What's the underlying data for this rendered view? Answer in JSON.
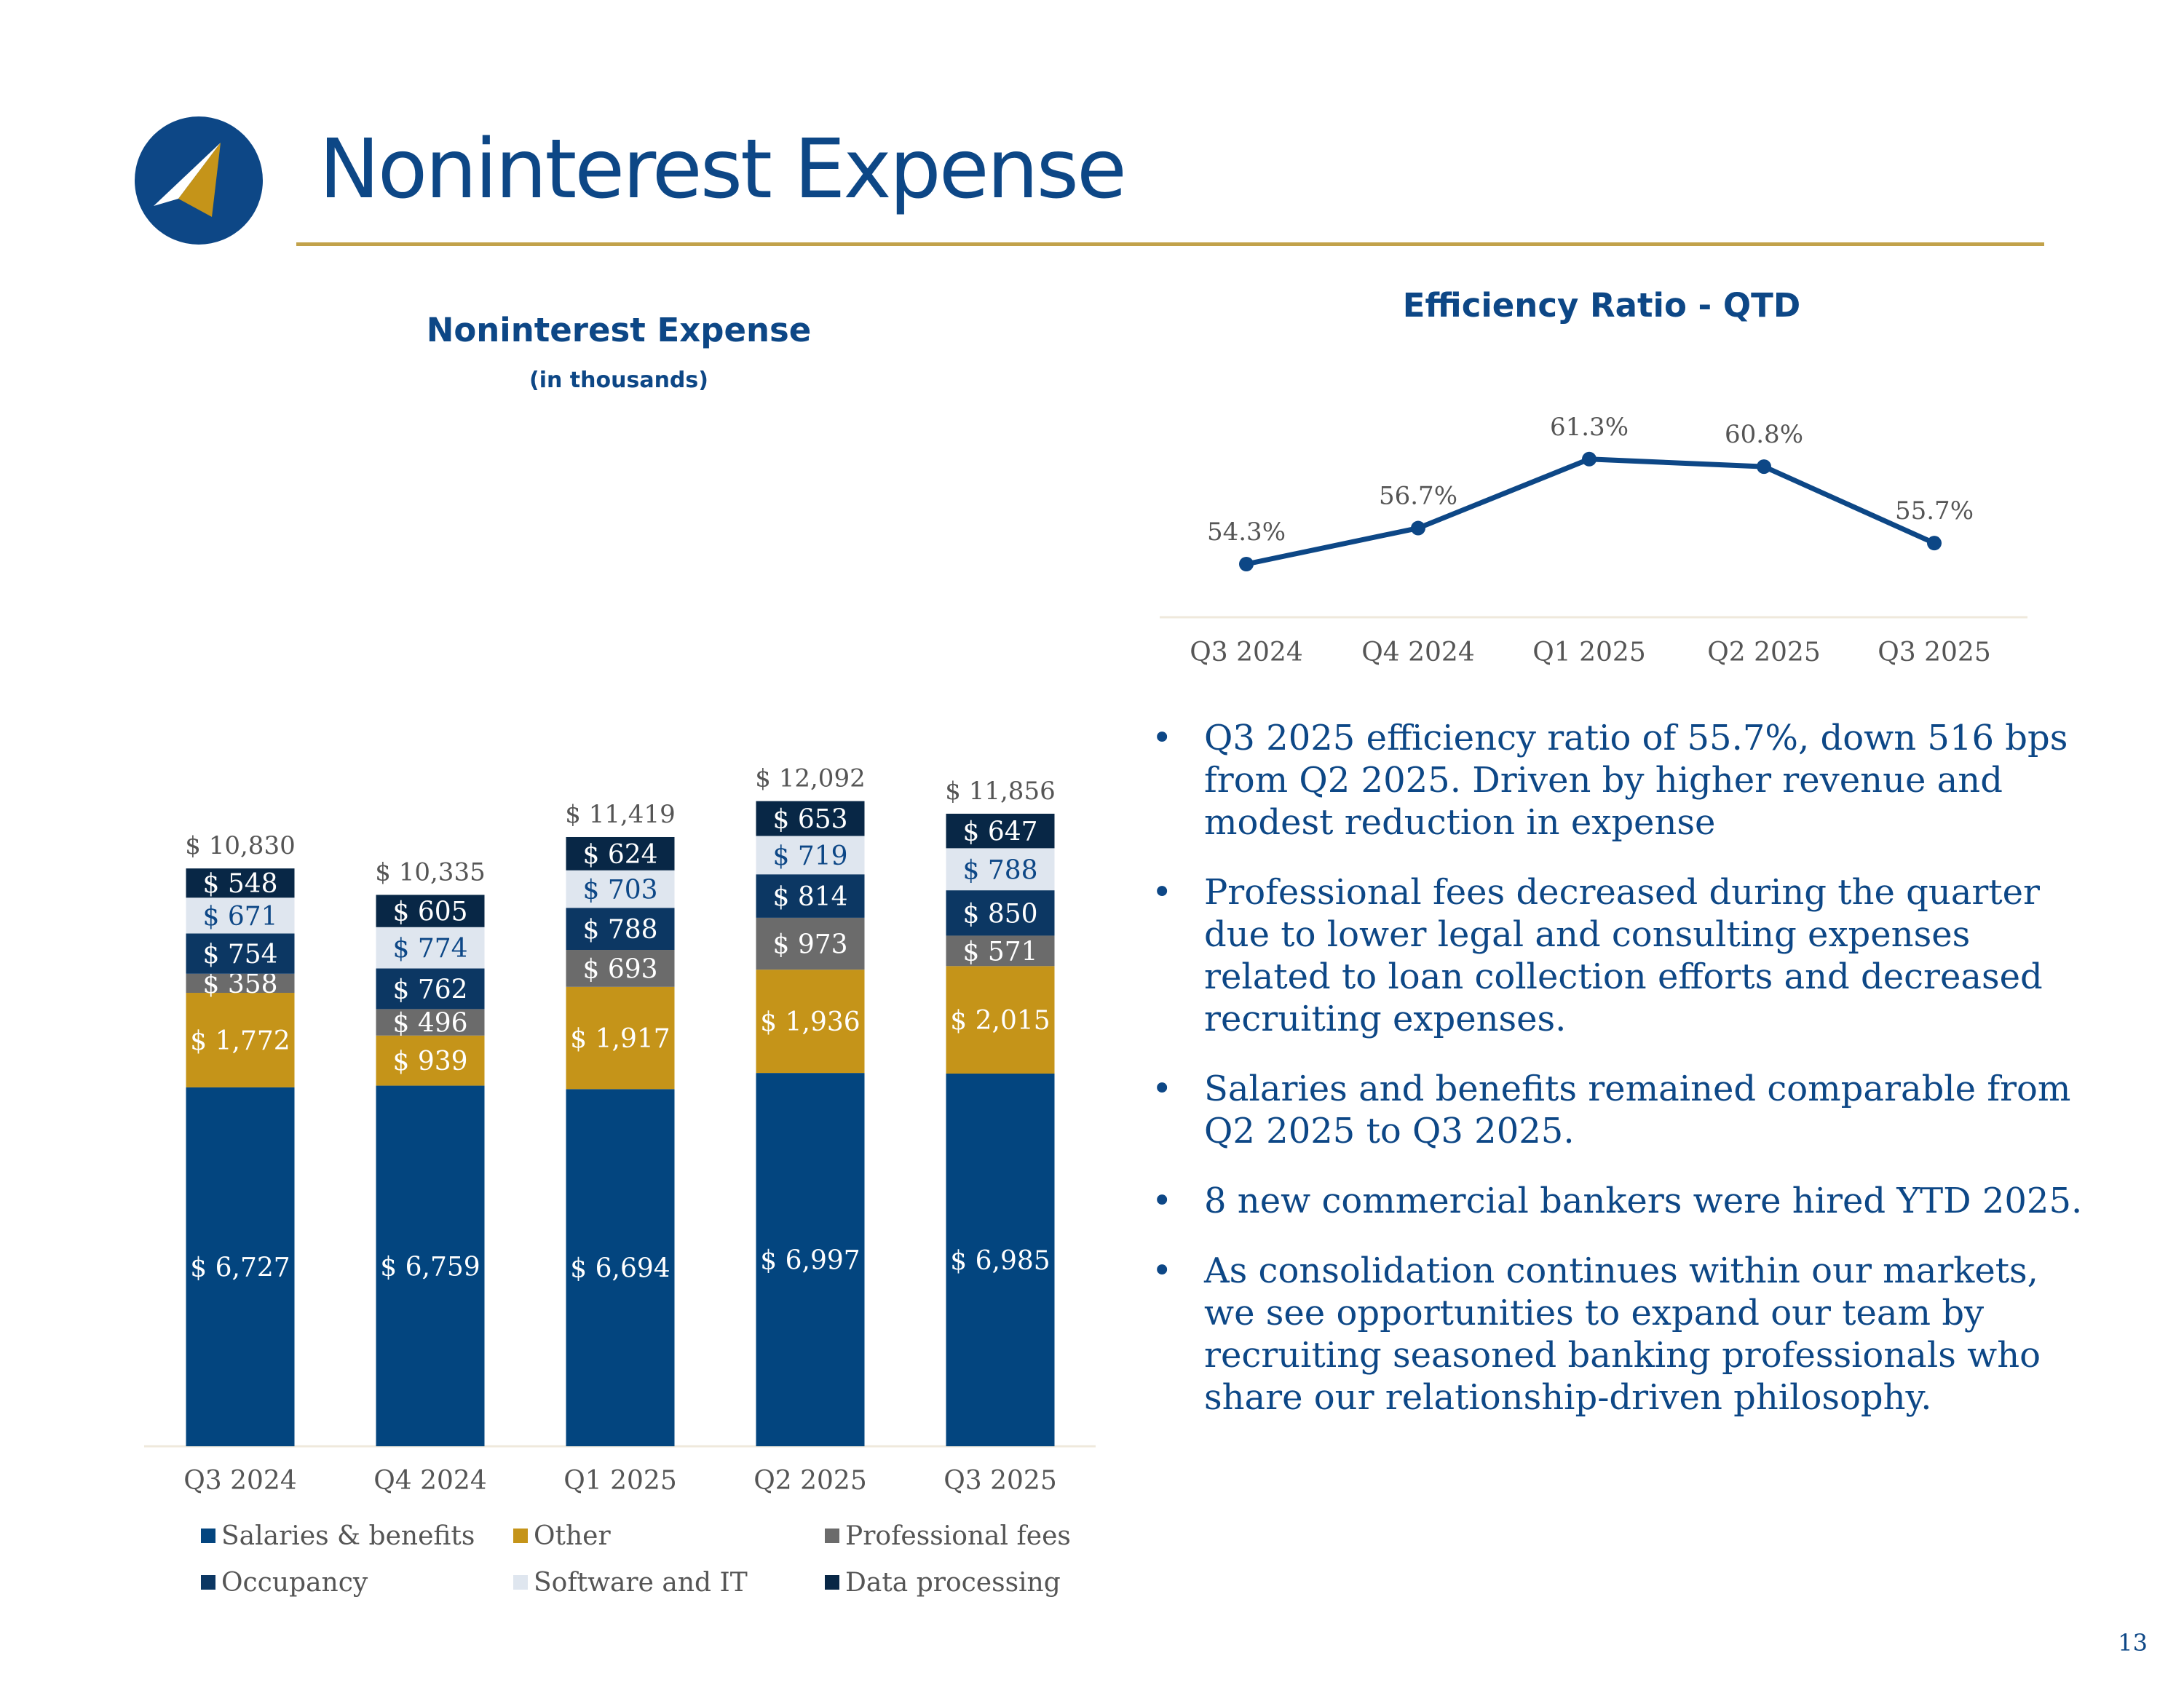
{
  "page": {
    "title": "Noninterest Expense",
    "page_number": "13"
  },
  "bar_chart": {
    "title": "Noninterest Expense",
    "subtitle": "(in thousands)"
  },
  "line_chart": {
    "title": "Efficiency Ratio - QTD"
  },
  "bullets": [
    "Q3 2025 efficiency ratio of 55.7%, down 516 bps from Q2 2025.  Driven by higher revenue and modest reduction in expense",
    "Professional fees decreased during the quarter due to lower legal and consulting expenses related to loan collection efforts and decreased recruiting expenses.",
    "Salaries and benefits remained comparable from Q2 2025 to Q3 2025.",
    "8 new commercial bankers were hired YTD 2025.",
    "As consolidation continues within our markets, we see opportunities to expand our team by recruiting seasoned banking professionals who share our relationship-driven philosophy."
  ],
  "bullet_marker": "•",
  "colors": {
    "brand_blue": "#0d4786",
    "brand_gold": "#c2a24a"
  },
  "chart_data": [
    {
      "type": "bar",
      "stacked": true,
      "title": "Noninterest Expense",
      "subtitle": "(in thousands)",
      "categories": [
        "Q3 2024",
        "Q4 2024",
        "Q1 2025",
        "Q2 2025",
        "Q3 2025"
      ],
      "value_prefix": "$ ",
      "series": [
        {
          "name": "Salaries & benefits",
          "values": [
            6727,
            6759,
            6694,
            6997,
            6985
          ],
          "color": "#03457f",
          "label_color": "#ffffff"
        },
        {
          "name": "Other",
          "values": [
            1772,
            939,
            1917,
            1936,
            2015
          ],
          "color": "#c59419",
          "label_color": "#ffffff"
        },
        {
          "name": "Professional fees",
          "values": [
            358,
            496,
            693,
            973,
            571
          ],
          "color": "#6b6b6b",
          "label_color": "#ffffff"
        },
        {
          "name": "Occupancy",
          "values": [
            754,
            762,
            788,
            814,
            850
          ],
          "color": "#0c3763",
          "label_color": "#ffffff"
        },
        {
          "name": "Software and IT",
          "values": [
            671,
            774,
            703,
            719,
            788
          ],
          "color": "#dfe6ef",
          "label_color": "#0d4786"
        },
        {
          "name": "Data processing",
          "values": [
            548,
            605,
            624,
            653,
            647
          ],
          "color": "#082746",
          "label_color": "#ffffff"
        }
      ],
      "totals": [
        10830,
        10335,
        11419,
        12092,
        11856
      ],
      "legend": {
        "position": "bottom",
        "items": [
          {
            "name": "Salaries & benefits",
            "color": "#03457f"
          },
          {
            "name": "Other",
            "color": "#c59419"
          },
          {
            "name": "Professional fees",
            "color": "#6b6b6b"
          },
          {
            "name": "Occupancy",
            "color": "#0c3763"
          },
          {
            "name": "Software and IT",
            "color": "#dfe6ef"
          },
          {
            "name": "Data processing",
            "color": "#082746"
          }
        ]
      },
      "grid": false
    },
    {
      "type": "line",
      "title": "Efficiency Ratio - QTD",
      "categories": [
        "Q3 2024",
        "Q4 2024",
        "Q1 2025",
        "Q2 2025",
        "Q3 2025"
      ],
      "values": [
        54.3,
        56.7,
        61.3,
        60.8,
        55.7
      ],
      "labels": [
        "54.3%",
        "56.7%",
        "61.3%",
        "60.8%",
        "55.7%"
      ],
      "color": "#0d4786",
      "grid": false
    }
  ]
}
